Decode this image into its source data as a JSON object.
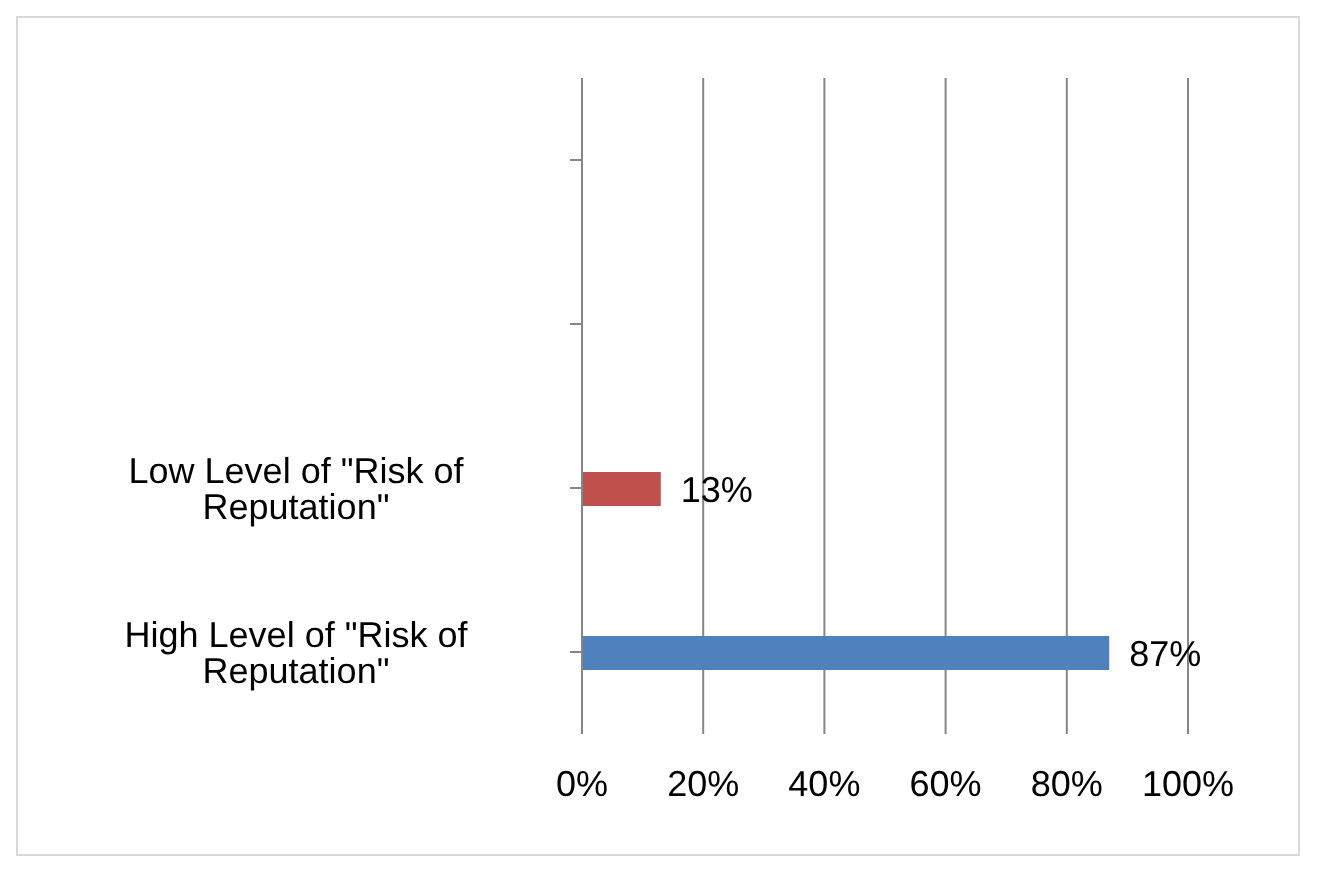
{
  "chart_data": {
    "type": "bar",
    "orientation": "horizontal",
    "categories": [
      null,
      null,
      "Low Level of \"Risk of Reputation\"",
      "High Level of \"Risk of Reputation\""
    ],
    "values": [
      null,
      null,
      13,
      87
    ],
    "colors": [
      "#4f81bd",
      "#4f81bd",
      "#c0504d",
      "#4f81bd"
    ],
    "value_labels": [
      null,
      null,
      "13%",
      "87%"
    ],
    "xlim": [
      0,
      100
    ],
    "xticks": [
      {
        "value": 0,
        "label": "0%"
      },
      {
        "value": 20,
        "label": "20%"
      },
      {
        "value": 40,
        "label": "40%"
      },
      {
        "value": 60,
        "label": "60%"
      },
      {
        "value": 80,
        "label": "80%"
      },
      {
        "value": 100,
        "label": "100%"
      }
    ],
    "grid": "x",
    "legend": false
  }
}
